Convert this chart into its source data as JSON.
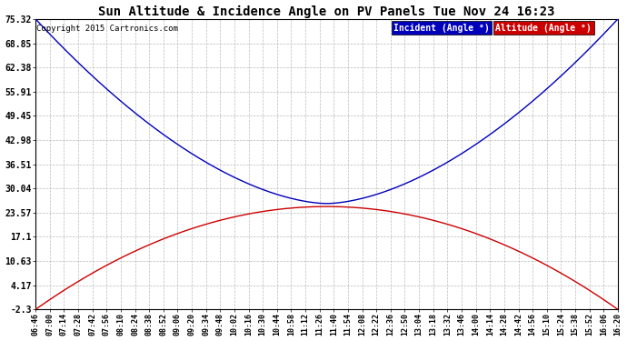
{
  "title": "Sun Altitude & Incidence Angle on PV Panels Tue Nov 24 16:23",
  "copyright": "Copyright 2015 Cartronics.com",
  "yticks": [
    75.32,
    68.85,
    62.38,
    55.91,
    49.45,
    42.98,
    36.51,
    30.04,
    23.57,
    17.1,
    10.63,
    4.17,
    -2.3
  ],
  "ymin": -2.3,
  "ymax": 75.32,
  "incident_color": "#0000bb",
  "altitude_color": "#cc0000",
  "background_color": "#ffffff",
  "grid_color": "#aaaaaa",
  "legend_incident_bg": "#0000bb",
  "legend_altitude_bg": "#cc0000",
  "legend_incident_label": "Incident (Angle °)",
  "legend_altitude_label": "Altitude (Angle °)",
  "xtick_labels": [
    "06:46",
    "07:00",
    "07:14",
    "07:28",
    "07:42",
    "07:56",
    "08:10",
    "08:24",
    "08:38",
    "08:52",
    "09:06",
    "09:20",
    "09:34",
    "09:48",
    "10:02",
    "10:16",
    "10:30",
    "10:44",
    "10:58",
    "11:12",
    "11:26",
    "11:40",
    "11:54",
    "12:08",
    "12:22",
    "12:36",
    "12:50",
    "13:04",
    "13:18",
    "13:32",
    "13:46",
    "14:00",
    "14:14",
    "14:28",
    "14:42",
    "14:56",
    "15:10",
    "15:24",
    "15:38",
    "15:52",
    "16:06",
    "16:20"
  ],
  "altitude_peak": 27.5,
  "altitude_base": -2.3,
  "incident_min": 26.0,
  "incident_max": 75.32
}
